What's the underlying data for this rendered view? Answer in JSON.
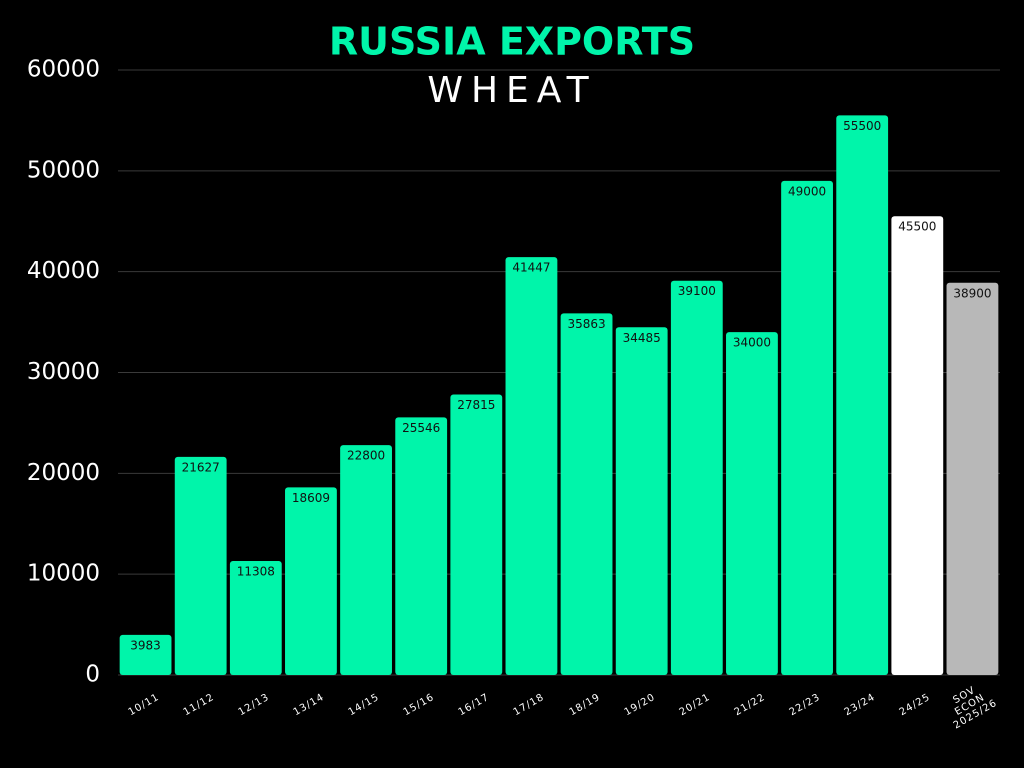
{
  "chart_data": {
    "type": "bar",
    "title": "RUSSIA EXPORTS",
    "subtitle": "WHEAT",
    "categories": [
      "10/11",
      "11/12",
      "12/13",
      "13/14",
      "14/15",
      "15/16",
      "16/17",
      "17/18",
      "18/19",
      "19/20",
      "20/21",
      "21/22",
      "22/23",
      "23/24",
      "24/25",
      "SOV ECON\n2025/26"
    ],
    "values": [
      3983,
      21627,
      11308,
      18609,
      22800,
      25546,
      27815,
      41447,
      35863,
      34485,
      39100,
      34000,
      49000,
      55500,
      45500,
      38900
    ],
    "colors": [
      "#00f5aa",
      "#00f5aa",
      "#00f5aa",
      "#00f5aa",
      "#00f5aa",
      "#00f5aa",
      "#00f5aa",
      "#00f5aa",
      "#00f5aa",
      "#00f5aa",
      "#00f5aa",
      "#00f5aa",
      "#00f5aa",
      "#00f5aa",
      "#ffffff",
      "#b8b8b8"
    ],
    "ylim": [
      0,
      60000
    ],
    "yticks": [
      0,
      10000,
      20000,
      30000,
      40000,
      50000,
      60000
    ],
    "grid": true
  }
}
